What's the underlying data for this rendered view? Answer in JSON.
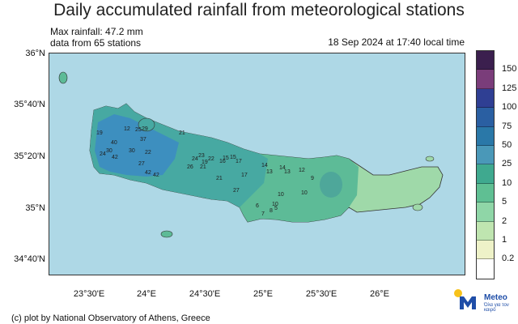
{
  "title": "Daily accumulated rainfall from meteorological stations",
  "max_rainfall": "Max rainfall: 47.2 mm",
  "stations_note": "data from 65 stations",
  "timestamp": "18 Sep 2024 at 17:40 local time",
  "lat_labels": [
    "36°N",
    "35°40'N",
    "35°20'N",
    "35°N",
    "34°40'N"
  ],
  "lon_labels": [
    "23°30'E",
    "24°E",
    "24°30'E",
    "25°E",
    "25°30'E",
    "26°E"
  ],
  "legend": {
    "levels": [
      "150",
      "125",
      "100",
      "75",
      "50",
      "25",
      "10",
      "5",
      "2",
      "1",
      "0.2"
    ],
    "colors": [
      "#3b1f4e",
      "#7a3d7a",
      "#2f3f93",
      "#2a5fa2",
      "#2a78a8",
      "#4a98b8",
      "#3fa98f",
      "#5fbf93",
      "#8fd6a7",
      "#bfe5b0",
      "#eef2c8",
      "#ffffff"
    ]
  },
  "station_values": [
    "19",
    "12",
    "25",
    "29",
    "40",
    "37",
    "30",
    "21",
    "24",
    "30",
    "42",
    "22",
    "27",
    "42",
    "26",
    "21",
    "17",
    "17",
    "15",
    "13",
    "14",
    "14",
    "13",
    "12",
    "10",
    "9",
    "10",
    "8",
    "7",
    "10",
    "27",
    "42",
    "5",
    "6",
    "15",
    "16",
    "19",
    "21",
    "22",
    "23",
    "24"
  ],
  "footer": "(c) plot by National Observatory of Athens, Greece",
  "logo": {
    "name": "Meteo",
    "tagline": "Όλα για τον καιρό"
  }
}
